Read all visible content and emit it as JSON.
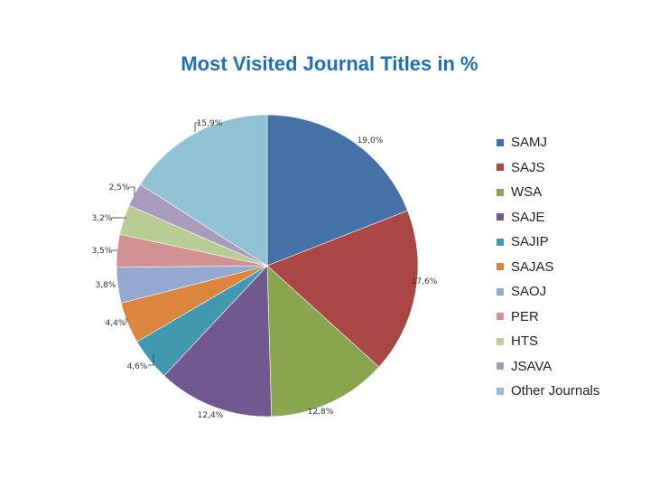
{
  "title": "Most Visited Journal Titles in %",
  "chart_data": {
    "type": "pie",
    "title": "Most Visited Journal Titles in %",
    "legend_position": "right",
    "series": [
      {
        "name": "SAMJ",
        "value": 19.0,
        "label": "19,0%",
        "color": "#4472a8"
      },
      {
        "name": "SAJS",
        "value": 17.6,
        "label": "17,6%",
        "color": "#aa4643"
      },
      {
        "name": "WSA",
        "value": 12.8,
        "label": "12,8%",
        "color": "#89a54e"
      },
      {
        "name": "SAJE",
        "value": 12.4,
        "label": "12,4%",
        "color": "#71588f"
      },
      {
        "name": "SAJIP",
        "value": 4.6,
        "label": "4,6%",
        "color": "#4198af"
      },
      {
        "name": "SAJAS",
        "value": 4.4,
        "label": "4,4%",
        "color": "#db843d"
      },
      {
        "name": "SAOJ",
        "value": 3.8,
        "label": "3,8%",
        "color": "#93a9cf"
      },
      {
        "name": "PER",
        "value": 3.5,
        "label": "3,5%",
        "color": "#d19392"
      },
      {
        "name": "HTS",
        "value": 3.2,
        "label": "3,2%",
        "color": "#b9cd96"
      },
      {
        "name": "JSAVA",
        "value": 2.5,
        "label": "2,5%",
        "color": "#a99bbd"
      },
      {
        "name": "Other Journals",
        "value": 15.9,
        "label": "15,9%",
        "color": "#92c3d4"
      }
    ]
  }
}
